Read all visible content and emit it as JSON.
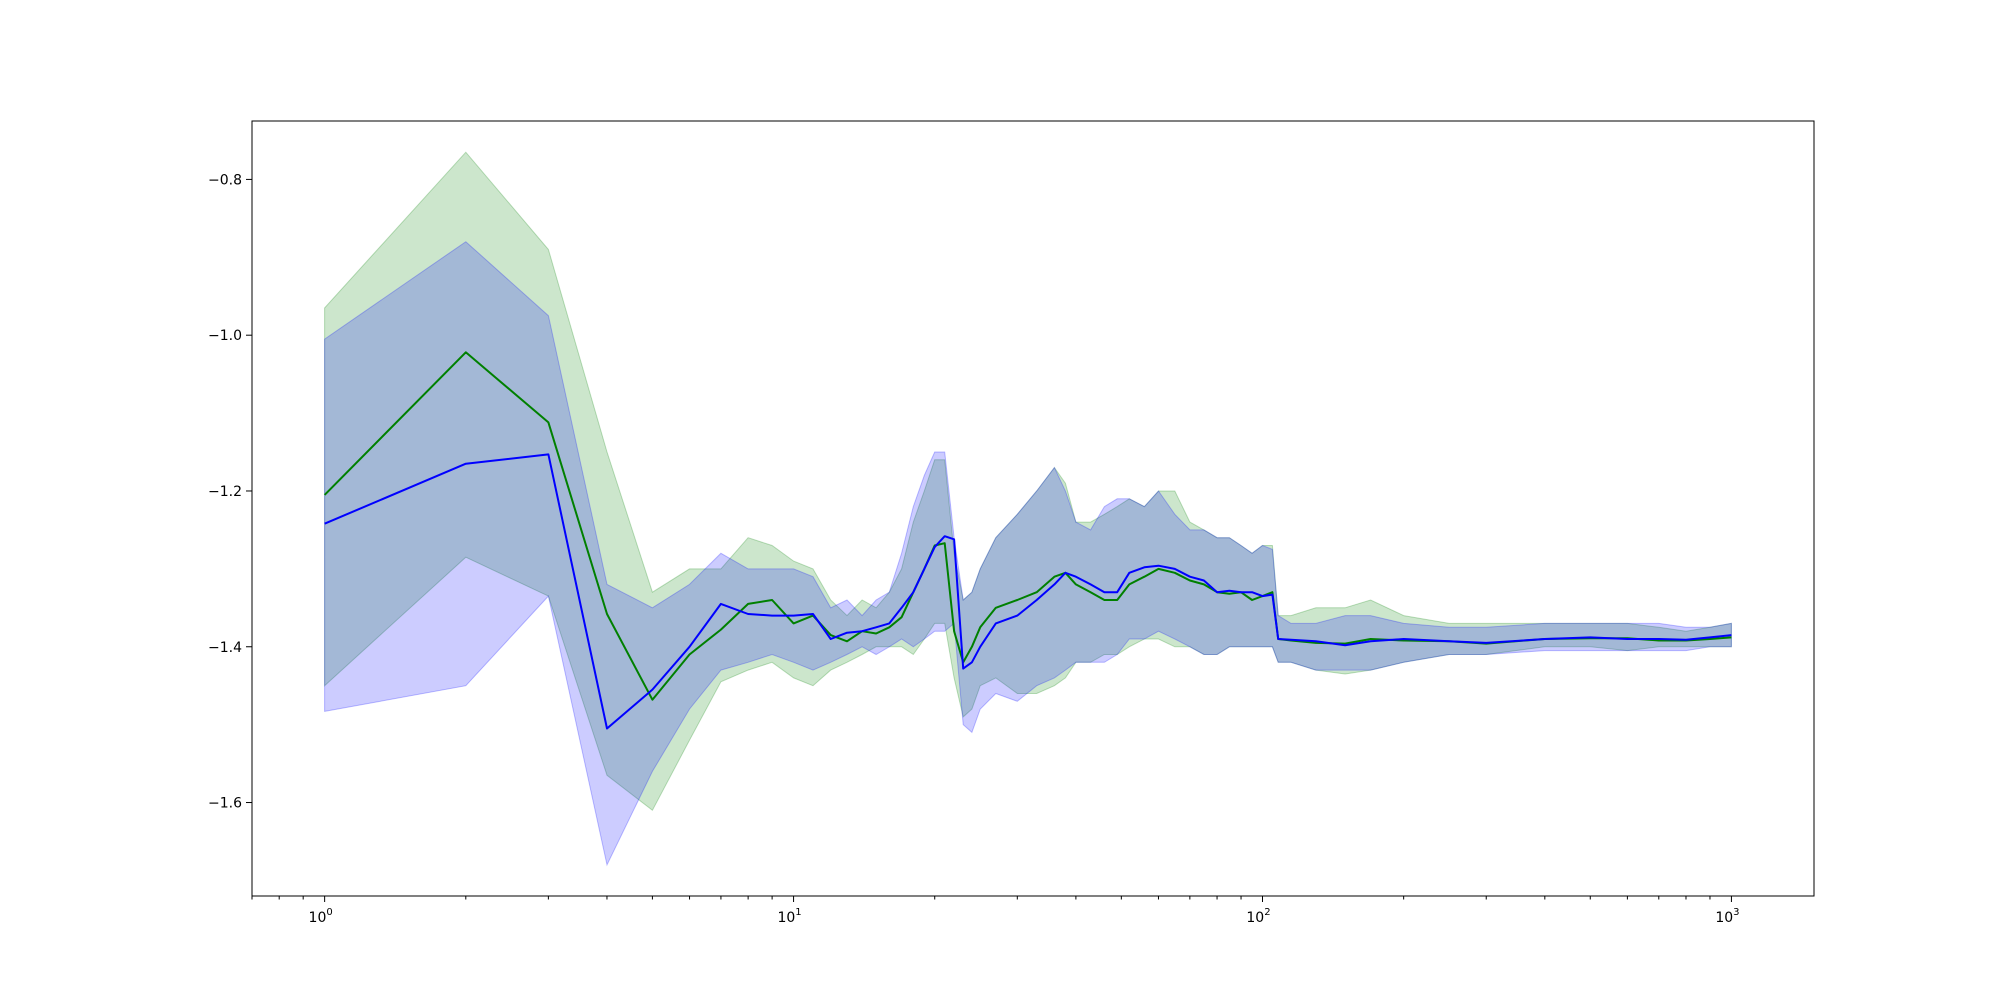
{
  "chart_data": {
    "type": "line",
    "title": "",
    "xlabel": "",
    "ylabel": "",
    "x_scale": "log",
    "xlim": [
      0.7,
      1500
    ],
    "ylim": [
      -1.72,
      -0.725
    ],
    "grid": false,
    "legend": "none",
    "y_ticks": [
      {
        "value": -0.8,
        "label": "−0.8"
      },
      {
        "value": -1.0,
        "label": "−1.0"
      },
      {
        "value": -1.2,
        "label": "−1.2"
      },
      {
        "value": -1.4,
        "label": "−1.4"
      },
      {
        "value": -1.6,
        "label": "−1.6"
      }
    ],
    "x_ticks": [
      {
        "value": 1,
        "base": "10",
        "exp": "0"
      },
      {
        "value": 10,
        "base": "10",
        "exp": "1"
      },
      {
        "value": 100,
        "base": "10",
        "exp": "2"
      },
      {
        "value": 1000,
        "base": "10",
        "exp": "3"
      }
    ],
    "series": [
      {
        "color": "#008000",
        "band_color": "#008000",
        "x": [
          1,
          2,
          3,
          4,
          5,
          6,
          7,
          8,
          9,
          10,
          11,
          12,
          13,
          14,
          15,
          16,
          17,
          18,
          19,
          20,
          21,
          22,
          23,
          24,
          25,
          27,
          30,
          33,
          36,
          38,
          40,
          43,
          46,
          49,
          52,
          56,
          60,
          65,
          70,
          75,
          80,
          85,
          90,
          95,
          100,
          105,
          108,
          115,
          130,
          150,
          170,
          200,
          250,
          300,
          400,
          500,
          600,
          700,
          800,
          900,
          1000
        ],
        "y": [
          -1.205,
          -1.022,
          -1.112,
          -1.358,
          -1.468,
          -1.41,
          -1.378,
          -1.345,
          -1.34,
          -1.37,
          -1.36,
          -1.385,
          -1.393,
          -1.38,
          -1.383,
          -1.375,
          -1.362,
          -1.33,
          -1.3,
          -1.27,
          -1.267,
          -1.38,
          -1.42,
          -1.4,
          -1.375,
          -1.35,
          -1.34,
          -1.33,
          -1.31,
          -1.305,
          -1.32,
          -1.33,
          -1.34,
          -1.34,
          -1.32,
          -1.31,
          -1.3,
          -1.305,
          -1.315,
          -1.32,
          -1.33,
          -1.332,
          -1.33,
          -1.34,
          -1.335,
          -1.33,
          -1.39,
          -1.392,
          -1.395,
          -1.396,
          -1.39,
          -1.392,
          -1.393,
          -1.396,
          -1.39,
          -1.389,
          -1.389,
          -1.392,
          -1.392,
          -1.39,
          -1.388
        ],
        "upper": [
          -0.965,
          -0.765,
          -0.89,
          -1.15,
          -1.33,
          -1.3,
          -1.3,
          -1.26,
          -1.27,
          -1.29,
          -1.3,
          -1.34,
          -1.36,
          -1.34,
          -1.35,
          -1.33,
          -1.3,
          -1.24,
          -1.2,
          -1.16,
          -1.16,
          -1.28,
          -1.34,
          -1.33,
          -1.3,
          -1.26,
          -1.23,
          -1.2,
          -1.17,
          -1.19,
          -1.24,
          -1.24,
          -1.23,
          -1.22,
          -1.21,
          -1.22,
          -1.2,
          -1.2,
          -1.24,
          -1.25,
          -1.26,
          -1.26,
          -1.27,
          -1.28,
          -1.27,
          -1.27,
          -1.36,
          -1.36,
          -1.35,
          -1.35,
          -1.34,
          -1.36,
          -1.37,
          -1.37,
          -1.37,
          -1.37,
          -1.37,
          -1.375,
          -1.38,
          -1.375,
          -1.37
        ],
        "lower": [
          -1.45,
          -1.285,
          -1.335,
          -1.565,
          -1.61,
          -1.52,
          -1.445,
          -1.43,
          -1.42,
          -1.44,
          -1.45,
          -1.43,
          -1.42,
          -1.41,
          -1.4,
          -1.4,
          -1.4,
          -1.41,
          -1.39,
          -1.37,
          -1.37,
          -1.44,
          -1.49,
          -1.48,
          -1.45,
          -1.44,
          -1.46,
          -1.46,
          -1.45,
          -1.44,
          -1.42,
          -1.42,
          -1.41,
          -1.41,
          -1.4,
          -1.39,
          -1.39,
          -1.4,
          -1.4,
          -1.41,
          -1.41,
          -1.4,
          -1.4,
          -1.4,
          -1.4,
          -1.4,
          -1.42,
          -1.42,
          -1.43,
          -1.435,
          -1.43,
          -1.42,
          -1.41,
          -1.41,
          -1.4,
          -1.4,
          -1.405,
          -1.4,
          -1.4,
          -1.4,
          -1.4
        ]
      },
      {
        "color": "#0000ff",
        "band_color": "#0000ff",
        "x": [
          1,
          2,
          3,
          4,
          5,
          6,
          7,
          8,
          9,
          10,
          11,
          12,
          13,
          14,
          15,
          16,
          17,
          18,
          19,
          20,
          21,
          22,
          23,
          24,
          25,
          27,
          30,
          33,
          36,
          38,
          40,
          43,
          46,
          49,
          52,
          56,
          60,
          65,
          70,
          75,
          80,
          85,
          90,
          95,
          100,
          105,
          108,
          115,
          130,
          150,
          170,
          200,
          250,
          300,
          400,
          500,
          600,
          700,
          800,
          900,
          1000
        ],
        "y": [
          -1.242,
          -1.165,
          -1.153,
          -1.505,
          -1.455,
          -1.4,
          -1.345,
          -1.358,
          -1.36,
          -1.36,
          -1.358,
          -1.39,
          -1.382,
          -1.38,
          -1.375,
          -1.37,
          -1.35,
          -1.33,
          -1.3,
          -1.272,
          -1.258,
          -1.262,
          -1.428,
          -1.42,
          -1.4,
          -1.37,
          -1.36,
          -1.34,
          -1.32,
          -1.305,
          -1.31,
          -1.32,
          -1.33,
          -1.33,
          -1.305,
          -1.298,
          -1.296,
          -1.3,
          -1.31,
          -1.315,
          -1.33,
          -1.328,
          -1.33,
          -1.33,
          -1.335,
          -1.333,
          -1.39,
          -1.391,
          -1.393,
          -1.398,
          -1.393,
          -1.39,
          -1.393,
          -1.395,
          -1.39,
          -1.388,
          -1.39,
          -1.39,
          -1.391,
          -1.388,
          -1.385
        ],
        "upper": [
          -1.005,
          -0.88,
          -0.975,
          -1.32,
          -1.35,
          -1.32,
          -1.28,
          -1.3,
          -1.3,
          -1.3,
          -1.31,
          -1.35,
          -1.34,
          -1.36,
          -1.34,
          -1.33,
          -1.28,
          -1.22,
          -1.18,
          -1.15,
          -1.15,
          -1.26,
          -1.34,
          -1.33,
          -1.3,
          -1.26,
          -1.23,
          -1.2,
          -1.17,
          -1.2,
          -1.24,
          -1.25,
          -1.22,
          -1.21,
          -1.21,
          -1.22,
          -1.2,
          -1.23,
          -1.25,
          -1.25,
          -1.26,
          -1.26,
          -1.27,
          -1.28,
          -1.27,
          -1.275,
          -1.36,
          -1.37,
          -1.37,
          -1.36,
          -1.36,
          -1.37,
          -1.375,
          -1.375,
          -1.37,
          -1.37,
          -1.37,
          -1.37,
          -1.375,
          -1.375,
          -1.37
        ],
        "lower": [
          -1.483,
          -1.45,
          -1.335,
          -1.68,
          -1.56,
          -1.48,
          -1.43,
          -1.42,
          -1.41,
          -1.42,
          -1.43,
          -1.42,
          -1.41,
          -1.4,
          -1.41,
          -1.4,
          -1.39,
          -1.4,
          -1.39,
          -1.38,
          -1.38,
          -1.37,
          -1.5,
          -1.51,
          -1.48,
          -1.46,
          -1.47,
          -1.45,
          -1.44,
          -1.43,
          -1.42,
          -1.42,
          -1.42,
          -1.41,
          -1.39,
          -1.39,
          -1.38,
          -1.39,
          -1.4,
          -1.41,
          -1.41,
          -1.4,
          -1.4,
          -1.4,
          -1.4,
          -1.4,
          -1.42,
          -1.42,
          -1.43,
          -1.43,
          -1.43,
          -1.42,
          -1.41,
          -1.41,
          -1.405,
          -1.405,
          -1.405,
          -1.405,
          -1.405,
          -1.4,
          -1.4
        ]
      }
    ]
  }
}
